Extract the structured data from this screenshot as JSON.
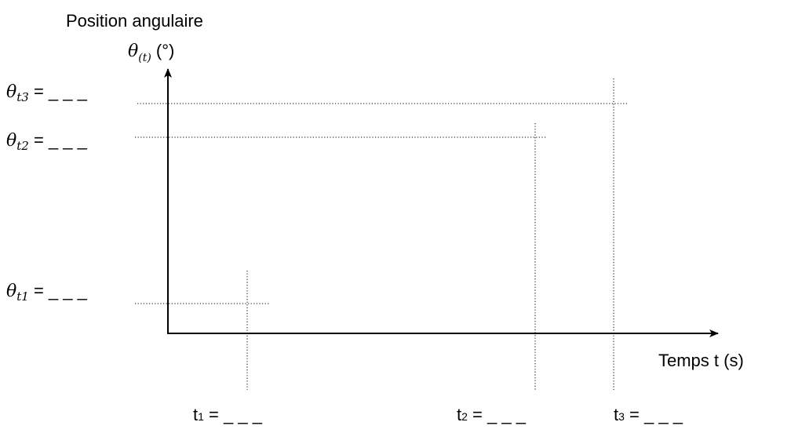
{
  "y_axis": {
    "label": "Position angulaire",
    "symbol": "θ",
    "subscript": "(t)",
    "unit": " (°)"
  },
  "x_axis": {
    "label": "Temps t (s)"
  },
  "theta_marks": [
    {
      "symbol": "θ",
      "subscript": "t3",
      "suffix": " = _ _ _"
    },
    {
      "symbol": "θ",
      "subscript": "t2",
      "suffix": " = _ _ _"
    },
    {
      "symbol": "θ",
      "subscript": "t1",
      "suffix": " = _ _ _"
    }
  ],
  "time_marks": [
    {
      "name": "t",
      "subscript": "1",
      "suffix": " = _ _ _"
    },
    {
      "name": "t",
      "subscript": "2",
      "suffix": " = _ _ _"
    },
    {
      "name": "t",
      "subscript": "3",
      "suffix": " = _ _ _"
    }
  ]
}
